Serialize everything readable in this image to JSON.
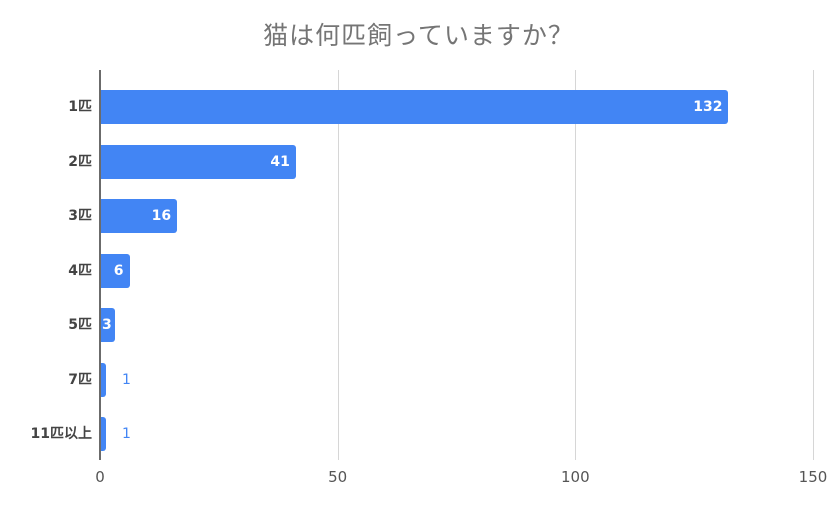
{
  "chart_data": {
    "type": "bar",
    "orientation": "horizontal",
    "title": "猫は何匹飼っていますか？",
    "categories": [
      "1匹",
      "2匹",
      "3匹",
      "4匹",
      "5匹",
      "7匹",
      "11匹以上"
    ],
    "values": [
      132,
      41,
      16,
      6,
      3,
      1,
      1
    ],
    "xlabel": "",
    "ylabel": "",
    "xlim": [
      0,
      150
    ],
    "xticks": [
      "0",
      "50",
      "100",
      "150"
    ],
    "grid": true,
    "legend": "none",
    "bar_color": "#4285f4",
    "data_labels": true
  },
  "labels": {
    "title": "猫は何匹飼っていますか？",
    "values_text": [
      "132",
      "41",
      "16",
      "6",
      "3",
      "1",
      "1"
    ],
    "ticks": [
      "0",
      "50",
      "100",
      "150"
    ]
  }
}
